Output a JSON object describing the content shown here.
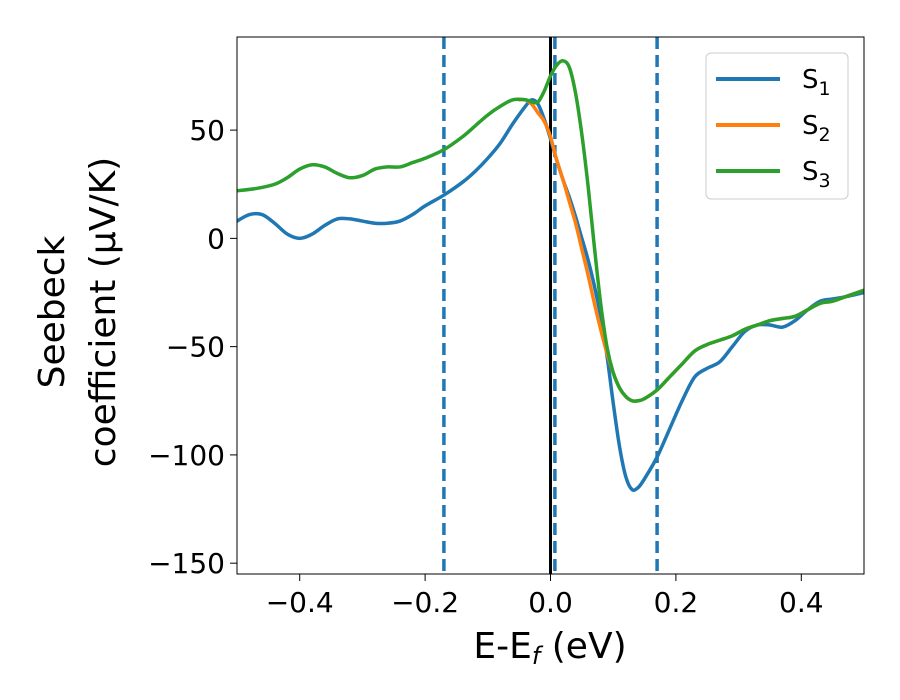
{
  "chart_data": {
    "type": "line",
    "title": "",
    "xlabel": {
      "main": "E-E",
      "sub": "f",
      "unit": " (eV)"
    },
    "ylabel": {
      "line1": "Seebeck",
      "line2": "coefficient (μV/K)"
    },
    "xlim": [
      -0.5,
      0.5
    ],
    "ylim": [
      -155,
      93
    ],
    "xticks": [
      -0.4,
      -0.2,
      0.0,
      0.2,
      0.4
    ],
    "xtick_labels": [
      "−0.4",
      "−0.2",
      "0.0",
      "0.2",
      "0.4"
    ],
    "yticks": [
      -150,
      -100,
      -50,
      0,
      50
    ],
    "ytick_labels": [
      "−150",
      "−100",
      "−50",
      "0",
      "50"
    ],
    "grid": false,
    "legend_position": "top-right",
    "vertical_lines": [
      {
        "x": -0.17,
        "style": "dashed",
        "color": "#1f77b4"
      },
      {
        "x": 0.0,
        "style": "solid",
        "color": "#000000"
      },
      {
        "x": 0.007,
        "style": "dashed",
        "color": "#1f77b4"
      },
      {
        "x": 0.17,
        "style": "dashed",
        "color": "#1f77b4"
      }
    ],
    "series": [
      {
        "name": "S",
        "sub": "1",
        "color": "#1f77b4",
        "points": [
          [
            -0.5,
            8
          ],
          [
            -0.48,
            11
          ],
          [
            -0.46,
            11
          ],
          [
            -0.44,
            7
          ],
          [
            -0.42,
            2
          ],
          [
            -0.4,
            0
          ],
          [
            -0.38,
            2
          ],
          [
            -0.36,
            6
          ],
          [
            -0.34,
            9
          ],
          [
            -0.32,
            9
          ],
          [
            -0.3,
            8
          ],
          [
            -0.28,
            7
          ],
          [
            -0.26,
            7
          ],
          [
            -0.24,
            8
          ],
          [
            -0.22,
            11
          ],
          [
            -0.2,
            15
          ],
          [
            -0.17,
            20
          ],
          [
            -0.14,
            26
          ],
          [
            -0.12,
            31
          ],
          [
            -0.1,
            37
          ],
          [
            -0.08,
            44
          ],
          [
            -0.06,
            53
          ],
          [
            -0.04,
            61
          ],
          [
            -0.03,
            64
          ],
          [
            -0.02,
            62
          ],
          [
            -0.01,
            55
          ],
          [
            0.0,
            46
          ],
          [
            0.01,
            36
          ],
          [
            0.02,
            27
          ],
          [
            0.03,
            19
          ],
          [
            0.04,
            10
          ],
          [
            0.05,
            0
          ],
          [
            0.06,
            -10
          ],
          [
            0.07,
            -22
          ],
          [
            0.08,
            -36
          ],
          [
            0.09,
            -54
          ],
          [
            0.1,
            -76
          ],
          [
            0.11,
            -96
          ],
          [
            0.12,
            -110
          ],
          [
            0.13,
            -116
          ],
          [
            0.14,
            -115
          ],
          [
            0.15,
            -111
          ],
          [
            0.17,
            -101
          ],
          [
            0.19,
            -88
          ],
          [
            0.21,
            -75
          ],
          [
            0.23,
            -64
          ],
          [
            0.25,
            -60
          ],
          [
            0.27,
            -57
          ],
          [
            0.29,
            -50
          ],
          [
            0.31,
            -43
          ],
          [
            0.33,
            -40
          ],
          [
            0.35,
            -40
          ],
          [
            0.37,
            -41
          ],
          [
            0.39,
            -38
          ],
          [
            0.41,
            -33
          ],
          [
            0.43,
            -29
          ],
          [
            0.45,
            -28
          ],
          [
            0.47,
            -27
          ],
          [
            0.5,
            -25
          ]
        ]
      },
      {
        "name": "S",
        "sub": "2",
        "color": "#ff7f0e",
        "points": [
          [
            -0.05,
            64
          ],
          [
            -0.04,
            64
          ],
          [
            -0.03,
            62
          ],
          [
            -0.02,
            58
          ],
          [
            -0.01,
            54
          ],
          [
            0.0,
            47
          ],
          [
            0.01,
            36
          ],
          [
            0.02,
            27
          ],
          [
            0.03,
            17
          ],
          [
            0.04,
            7
          ],
          [
            0.05,
            -5
          ],
          [
            0.06,
            -17
          ],
          [
            0.07,
            -30
          ],
          [
            0.08,
            -42
          ],
          [
            0.09,
            -53
          ],
          [
            0.1,
            -62
          ],
          [
            0.11,
            -69
          ],
          [
            0.12,
            -73
          ],
          [
            0.13,
            -75
          ],
          [
            0.14,
            -75
          ],
          [
            0.15,
            -74
          ],
          [
            0.17,
            -70
          ],
          [
            0.19,
            -64
          ],
          [
            0.21,
            -58
          ],
          [
            0.23,
            -52
          ],
          [
            0.25,
            -49
          ],
          [
            0.27,
            -47
          ],
          [
            0.29,
            -45
          ],
          [
            0.31,
            -42
          ],
          [
            0.33,
            -40
          ],
          [
            0.35,
            -38
          ],
          [
            0.37,
            -37
          ],
          [
            0.39,
            -36
          ],
          [
            0.41,
            -33
          ],
          [
            0.43,
            -30
          ],
          [
            0.45,
            -29
          ],
          [
            0.47,
            -27
          ],
          [
            0.5,
            -24
          ]
        ]
      },
      {
        "name": "S",
        "sub": "3",
        "color": "#2ca02c",
        "points": [
          [
            -0.5,
            22
          ],
          [
            -0.47,
            23
          ],
          [
            -0.44,
            25
          ],
          [
            -0.42,
            28
          ],
          [
            -0.4,
            32
          ],
          [
            -0.38,
            34
          ],
          [
            -0.36,
            33
          ],
          [
            -0.34,
            30
          ],
          [
            -0.32,
            28
          ],
          [
            -0.3,
            29
          ],
          [
            -0.28,
            32
          ],
          [
            -0.26,
            33
          ],
          [
            -0.24,
            33
          ],
          [
            -0.22,
            35
          ],
          [
            -0.2,
            37
          ],
          [
            -0.17,
            41
          ],
          [
            -0.14,
            47
          ],
          [
            -0.12,
            52
          ],
          [
            -0.1,
            57
          ],
          [
            -0.08,
            61
          ],
          [
            -0.06,
            64
          ],
          [
            -0.04,
            64
          ],
          [
            -0.03,
            63
          ],
          [
            -0.02,
            63
          ],
          [
            -0.01,
            68
          ],
          [
            0.0,
            75
          ],
          [
            0.01,
            80
          ],
          [
            0.02,
            82
          ],
          [
            0.03,
            79
          ],
          [
            0.04,
            67
          ],
          [
            0.05,
            48
          ],
          [
            0.06,
            24
          ],
          [
            0.07,
            -4
          ],
          [
            0.08,
            -30
          ],
          [
            0.09,
            -50
          ],
          [
            0.1,
            -62
          ],
          [
            0.11,
            -69
          ],
          [
            0.12,
            -73
          ],
          [
            0.13,
            -75
          ],
          [
            0.14,
            -75
          ],
          [
            0.15,
            -74
          ],
          [
            0.17,
            -70
          ],
          [
            0.19,
            -64
          ],
          [
            0.21,
            -58
          ],
          [
            0.23,
            -52
          ],
          [
            0.25,
            -49
          ],
          [
            0.27,
            -47
          ],
          [
            0.29,
            -45
          ],
          [
            0.31,
            -42
          ],
          [
            0.33,
            -40
          ],
          [
            0.35,
            -38
          ],
          [
            0.37,
            -37
          ],
          [
            0.39,
            -36
          ],
          [
            0.41,
            -33
          ],
          [
            0.43,
            -30
          ],
          [
            0.45,
            -29
          ],
          [
            0.47,
            -27
          ],
          [
            0.5,
            -24
          ]
        ]
      }
    ]
  }
}
